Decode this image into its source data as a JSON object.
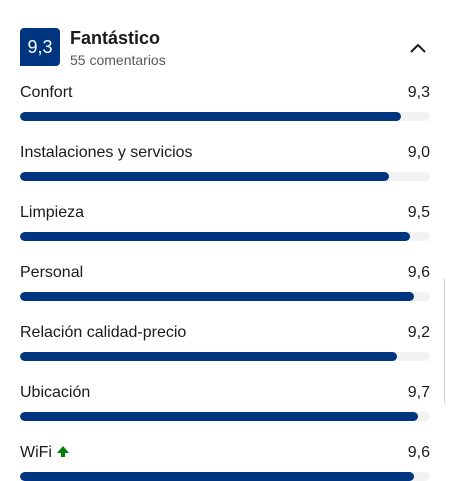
{
  "header": {
    "score": "9,3",
    "title": "Fantástico",
    "subtitle": "55 comentarios"
  },
  "ratings": {
    "xlim": [
      0,
      10
    ],
    "color": "#003580",
    "items": [
      {
        "label": "Confort",
        "score": "9,3",
        "value": 9.3
      },
      {
        "label": "Instalaciones y servicios",
        "score": "9,0",
        "value": 9.0
      },
      {
        "label": "Limpieza",
        "score": "9,5",
        "value": 9.5
      },
      {
        "label": "Personal",
        "score": "9,6",
        "value": 9.6
      },
      {
        "label": "Relación calidad-precio",
        "score": "9,2",
        "value": 9.2
      },
      {
        "label": "Ubicación",
        "score": "9,7",
        "value": 9.7
      },
      {
        "label": "WiFi",
        "score": "9,6",
        "value": 9.6
      }
    ]
  }
}
